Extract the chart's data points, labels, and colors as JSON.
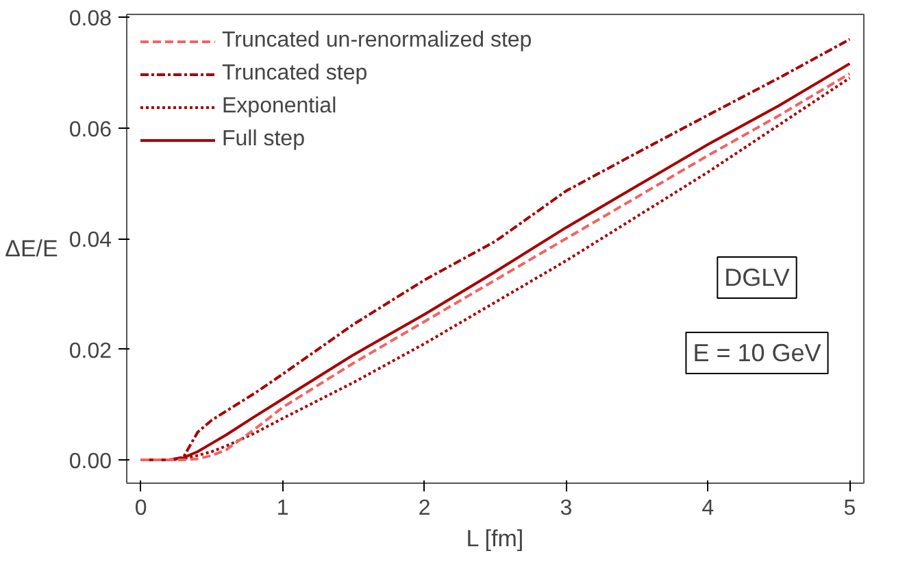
{
  "chart_data": {
    "type": "line",
    "xlabel": "L [fm]",
    "ylabel": "ΔE/E",
    "x": [
      0,
      0.2,
      0.3,
      0.4,
      0.5,
      0.6,
      0.8,
      1,
      1.5,
      2,
      2.5,
      3,
      3.5,
      4,
      4.5,
      5
    ],
    "series": [
      {
        "name": "Truncated un-renormalized step",
        "color": "#f26464",
        "line_style": "dashed",
        "values": [
          0,
          0,
          0,
          0.0002,
          0.0008,
          0.0018,
          0.0055,
          0.0095,
          0.0175,
          0.025,
          0.0325,
          0.04,
          0.0475,
          0.055,
          0.0622,
          0.0698
        ]
      },
      {
        "name": "Truncated step",
        "color": "#a80000",
        "line_style": "dashdot",
        "values": [
          0,
          0,
          0.0005,
          0.005,
          0.0072,
          0.0088,
          0.012,
          0.0155,
          0.0245,
          0.0325,
          0.0395,
          0.0486,
          0.0555,
          0.0623,
          0.069,
          0.076
        ]
      },
      {
        "name": "Exponential",
        "color": "#a80000",
        "line_style": "dotted",
        "values": [
          0,
          0,
          0.0002,
          0.0008,
          0.0015,
          0.0025,
          0.0048,
          0.0075,
          0.014,
          0.021,
          0.0285,
          0.036,
          0.044,
          0.052,
          0.0605,
          0.069
        ]
      },
      {
        "name": "Full step",
        "color": "#a80000",
        "line_style": "solid",
        "values": [
          0,
          0,
          0.0004,
          0.0015,
          0.003,
          0.0045,
          0.0078,
          0.011,
          0.019,
          0.0263,
          0.034,
          0.042,
          0.0495,
          0.057,
          0.064,
          0.0716
        ]
      }
    ],
    "xlim": [
      -0.1,
      5.1
    ],
    "ylim": [
      -0.0042,
      0.0805
    ],
    "xticks": [
      0,
      1,
      2,
      3,
      4,
      5
    ],
    "yticks": [
      {
        "value": 0,
        "label": "0.00"
      },
      {
        "value": 0.02,
        "label": "0.02"
      },
      {
        "value": 0.04,
        "label": "0.04"
      },
      {
        "value": 0.06,
        "label": "0.06"
      },
      {
        "value": 0.08,
        "label": "0.08"
      }
    ],
    "annotations": [
      "DGLV",
      "E = 10 GeV"
    ],
    "grid": false,
    "legend": "top left"
  }
}
